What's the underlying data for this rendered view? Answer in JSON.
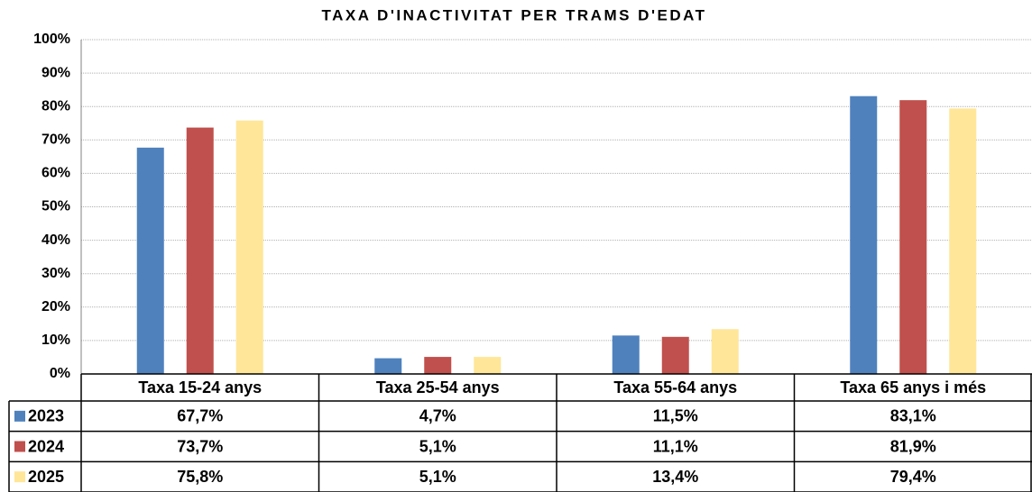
{
  "chart_data": {
    "type": "bar",
    "title": "TAXA D'INACTIVITAT PER TRAMS D'EDAT",
    "categories": [
      "Taxa 15-24 anys",
      "Taxa 25-54 anys",
      "Taxa 55-64 anys",
      "Taxa 65 anys i més"
    ],
    "series": [
      {
        "name": "2023",
        "color": "#4f81bd",
        "values": [
          67.7,
          4.7,
          11.5,
          83.1
        ],
        "value_labels": [
          "67,7%",
          "4,7%",
          "11,5%",
          "83,1%"
        ]
      },
      {
        "name": "2024",
        "color": "#c0504d",
        "values": [
          73.7,
          5.1,
          11.1,
          81.9
        ],
        "value_labels": [
          "73,7%",
          "5,1%",
          "11,1%",
          "81,9%"
        ]
      },
      {
        "name": "2025",
        "color": "#ffe699",
        "values": [
          75.8,
          5.1,
          13.4,
          79.4
        ],
        "value_labels": [
          "75,8%",
          "5,1%",
          "13,4%",
          "79,4%"
        ]
      }
    ],
    "ylim": [
      0,
      100
    ],
    "yticks": [
      {
        "value": 0,
        "label": "0%"
      },
      {
        "value": 10,
        "label": "10%"
      },
      {
        "value": 20,
        "label": "20%"
      },
      {
        "value": 30,
        "label": "30%"
      },
      {
        "value": 40,
        "label": "40%"
      },
      {
        "value": 50,
        "label": "50%"
      },
      {
        "value": 60,
        "label": "60%"
      },
      {
        "value": 70,
        "label": "70%"
      },
      {
        "value": 80,
        "label": "80%"
      },
      {
        "value": 90,
        "label": "90%"
      },
      {
        "value": 100,
        "label": "100%"
      }
    ],
    "grid": true
  }
}
